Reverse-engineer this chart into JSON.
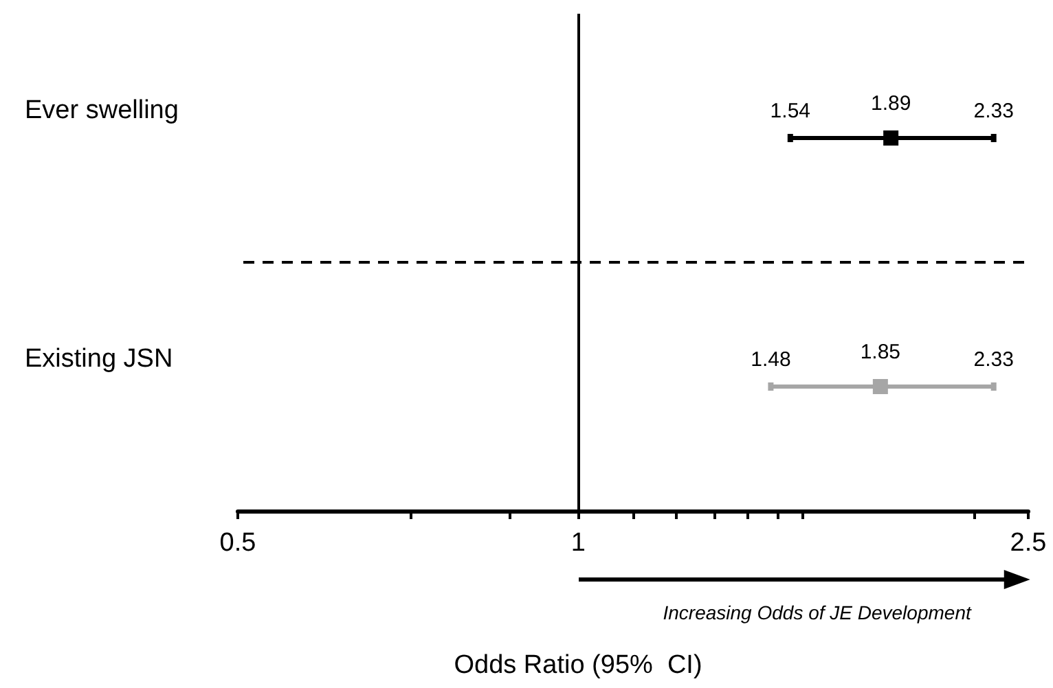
{
  "chart_data": {
    "type": "scatter",
    "orientation": "horizontal",
    "xlabel": "Odds Ratio (95%  CI)",
    "categories": [
      "Ever swelling",
      "Existing JSN"
    ],
    "series": [
      {
        "color": "#000000",
        "values": [
          1.89,
          null
        ],
        "errors": [
          [
            1.54,
            2.33
          ],
          null
        ],
        "value_labels": [
          "1.89",
          null
        ]
      },
      {
        "color": "#a6a6a6",
        "values": [
          null,
          1.85
        ],
        "errors": [
          null,
          [
            1.48,
            2.33
          ]
        ],
        "value_labels": [
          null,
          "1.85"
        ]
      }
    ],
    "marker": "square",
    "log": "x",
    "xlim": [
      0.5,
      2.5
    ],
    "xticks": [
      0.5,
      {
        "value": 0.71,
        "label": null
      },
      {
        "value": 0.87,
        "label": null
      },
      1,
      {
        "value": 1.12,
        "label": null
      },
      {
        "value": 1.22,
        "label": null
      },
      {
        "value": 1.32,
        "label": null
      },
      {
        "value": 1.41,
        "label": null
      },
      {
        "value": 1.5,
        "label": null
      },
      {
        "value": 1.58,
        "label": null
      },
      {
        "value": 2.24,
        "label": null
      },
      2.5
    ],
    "ref_lines": [
      {
        "axis": "x",
        "value": 1,
        "color": "#000000",
        "line_style": "solid"
      }
    ],
    "grid": false,
    "legend": false,
    "annotations": [
      "Increasing Odds of JE Development",
      "1.54",
      "2.33",
      "1.48",
      "2.33"
    ]
  }
}
